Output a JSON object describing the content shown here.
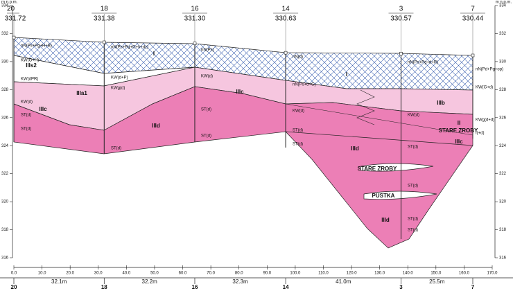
{
  "axis": {
    "left_title": "m n.p.m.",
    "right_title": "m n.p.m.",
    "yticks": [
      316,
      318,
      320,
      322,
      324,
      326,
      328,
      330,
      332,
      334
    ],
    "xticks": [
      {
        "value": 0,
        "label": "0.0"
      },
      {
        "value": 10,
        "label": "10.0"
      },
      {
        "value": 20,
        "label": "20.0"
      },
      {
        "value": 30,
        "label": "30.0"
      },
      {
        "value": 40,
        "label": "40.0"
      },
      {
        "value": 50,
        "label": "50.0"
      },
      {
        "value": 60,
        "label": "60.0"
      },
      {
        "value": 70,
        "label": "70.0"
      },
      {
        "value": 80,
        "label": "80.0"
      },
      {
        "value": 90,
        "label": "90.0"
      },
      {
        "value": 100,
        "label": "100.0"
      },
      {
        "value": 110,
        "label": "110.0"
      },
      {
        "value": 120,
        "label": "120.0"
      },
      {
        "value": 130,
        "label": "130.0"
      },
      {
        "value": 140,
        "label": "140.0"
      },
      {
        "value": 150,
        "label": "150.0"
      },
      {
        "value": 160,
        "label": "160.0"
      },
      {
        "value": 170,
        "label": "170.0"
      }
    ]
  },
  "boreholes": [
    {
      "name": "20",
      "elevation": "331.72"
    },
    {
      "name": "18",
      "elevation": "331.38"
    },
    {
      "name": "16",
      "elevation": "331.30"
    },
    {
      "name": "14",
      "elevation": "330.63"
    },
    {
      "name": "3",
      "elevation": "330.57"
    },
    {
      "name": "7",
      "elevation": "330.44"
    }
  ],
  "distances": [
    "32.1m",
    "32.2m",
    "32.3m",
    "41.0m",
    "25.5m"
  ],
  "layer_labels": [
    "IIIs2",
    "IIIa1",
    "IIIc",
    "I",
    "IIIc",
    "IIId",
    "I",
    "IIId",
    "IIIb",
    "II",
    "STARE ZROBY",
    "IIIc",
    "STARE ZROBY",
    "PUSTKA",
    "IIId"
  ],
  "lithology_labels": [
    "nN(Ps+Pg+H+B)",
    "KW(G+H)",
    "KW(dPR)",
    "KW(d)",
    "ST(d)",
    "ST(d)",
    "nN(Ps+Pg+G+k+dz)",
    "KW(d+P)",
    "KWg(d)",
    "ST(d)",
    "nN(Ps)",
    "KW(d)",
    "ST(d)",
    "ST(d)",
    "nN(d)",
    "nN(Ps+d+G)",
    "KW(d)",
    "ST(d)",
    "ST(d)",
    "nN(Ps+Pg+d+R)",
    "KW(d)",
    "ST(d)",
    "ST(d)",
    "ST(d)",
    "ST(d)",
    "nN(Pd+Pg+op)",
    "KW(G+d)",
    "KWg(d+d)",
    "I(+d)"
  ]
}
